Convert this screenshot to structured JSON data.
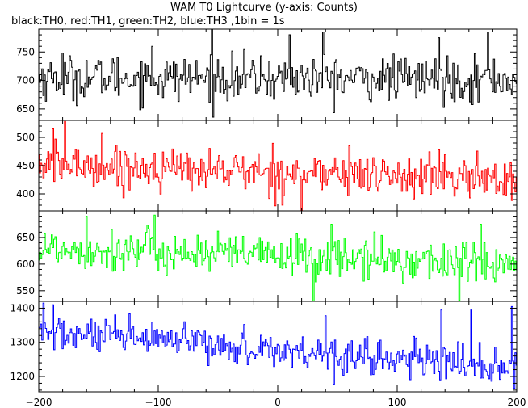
{
  "chart_data": {
    "type": "line",
    "title": "WAM T0 Lightcurve (y-axis: Counts)",
    "subtitle": "black:TH0, red:TH1, green:TH2, blue:TH3 ,1bin = 1s",
    "xlim": [
      -200,
      200
    ],
    "x_ticks": [
      -200,
      -100,
      0,
      100,
      200
    ],
    "bin_size_s": 1,
    "series": [
      {
        "name": "TH0",
        "color": "#000000",
        "ylim": [
          630,
          790
        ],
        "y_ticks": [
          650,
          700,
          750
        ],
        "mean": 705,
        "noise": 26,
        "trend_start": 705,
        "trend_end": 702,
        "spikes": [
          [
            -180,
            748
          ],
          [
            -105,
            760
          ],
          [
            -55,
            790
          ],
          [
            10,
            780
          ],
          [
            38,
            785
          ],
          [
            135,
            775
          ],
          [
            176,
            785
          ]
        ]
      },
      {
        "name": "TH1",
        "color": "#ff0000",
        "ylim": [
          370,
          530
        ],
        "y_ticks": [
          400,
          450,
          500
        ],
        "mean": 438,
        "noise": 24,
        "trend_start": 452,
        "trend_end": 425,
        "spikes": [
          [
            -178,
            528
          ],
          [
            -188,
            515
          ],
          [
            -147,
            507
          ],
          [
            20,
            370
          ],
          [
            60,
            485
          ],
          [
            135,
            478
          ]
        ]
      },
      {
        "name": "TH2",
        "color": "#00ff00",
        "ylim": [
          530,
          700
        ],
        "y_ticks": [
          550,
          600,
          650
        ],
        "mean": 615,
        "noise": 26,
        "trend_start": 630,
        "trend_end": 600,
        "spikes": [
          [
            -160,
            690
          ],
          [
            -103,
            692
          ],
          [
            30,
            530
          ],
          [
            45,
            675
          ],
          [
            152,
            532
          ],
          [
            170,
            675
          ]
        ]
      },
      {
        "name": "TH3",
        "color": "#0000ff",
        "ylim": [
          1155,
          1420
        ],
        "y_ticks": [
          1200,
          1300,
          1400
        ],
        "mean": 1270,
        "noise": 35,
        "trend_start": 1330,
        "trend_end": 1225,
        "spikes": [
          [
            -196,
            1415
          ],
          [
            -188,
            1410
          ],
          [
            40,
            1378
          ],
          [
            137,
            1395
          ],
          [
            162,
            1395
          ],
          [
            196,
            1405
          ],
          [
            198,
            1165
          ]
        ]
      }
    ],
    "grid": false,
    "legend": "none"
  }
}
